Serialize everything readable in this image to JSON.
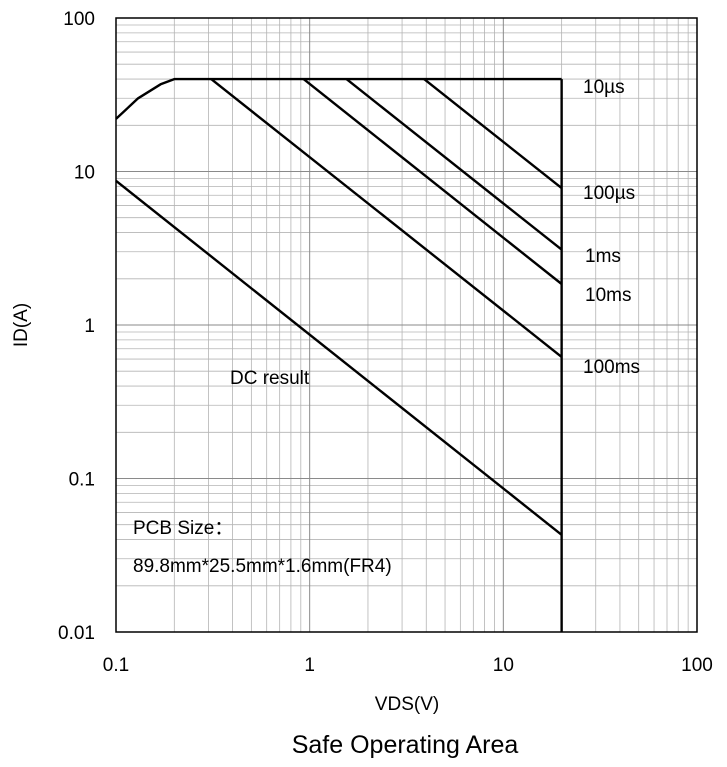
{
  "chart_data": {
    "type": "line",
    "title": "Safe Operating Area",
    "xlabel": "VDS(V)",
    "ylabel": "ID(A)",
    "x_scale": "log",
    "y_scale": "log",
    "xlim": [
      0.1,
      100
    ],
    "ylim": [
      0.01,
      100
    ],
    "grid": true,
    "x_ticks": [
      "0.1",
      "1",
      "10",
      "100"
    ],
    "y_ticks": [
      "0.01",
      "0.1",
      "1",
      "10",
      "100"
    ],
    "limits": {
      "current_limit_A": 40,
      "voltage_limit_V": 20
    },
    "series": [
      {
        "name": "10µs",
        "points": [
          [
            0.1,
            22
          ],
          [
            0.13,
            30
          ],
          [
            0.17,
            37
          ],
          [
            0.2,
            40
          ],
          [
            20,
            40
          ]
        ]
      },
      {
        "name": "100µs",
        "points": [
          [
            3.9,
            40
          ],
          [
            20,
            7.8
          ]
        ]
      },
      {
        "name": "1ms",
        "points": [
          [
            1.55,
            40
          ],
          [
            20,
            3.1
          ]
        ]
      },
      {
        "name": "10ms",
        "points": [
          [
            0.93,
            40
          ],
          [
            20,
            1.85
          ]
        ]
      },
      {
        "name": "100ms",
        "points": [
          [
            0.31,
            40
          ],
          [
            20,
            0.62
          ]
        ]
      },
      {
        "name": "DC result",
        "points": [
          [
            0.1,
            8.7
          ],
          [
            20,
            0.043
          ]
        ]
      }
    ],
    "annotations": [
      {
        "text": "PCB Size："
      },
      {
        "text": "89.8mm*25.5mm*1.6mm(FR4)"
      }
    ]
  }
}
